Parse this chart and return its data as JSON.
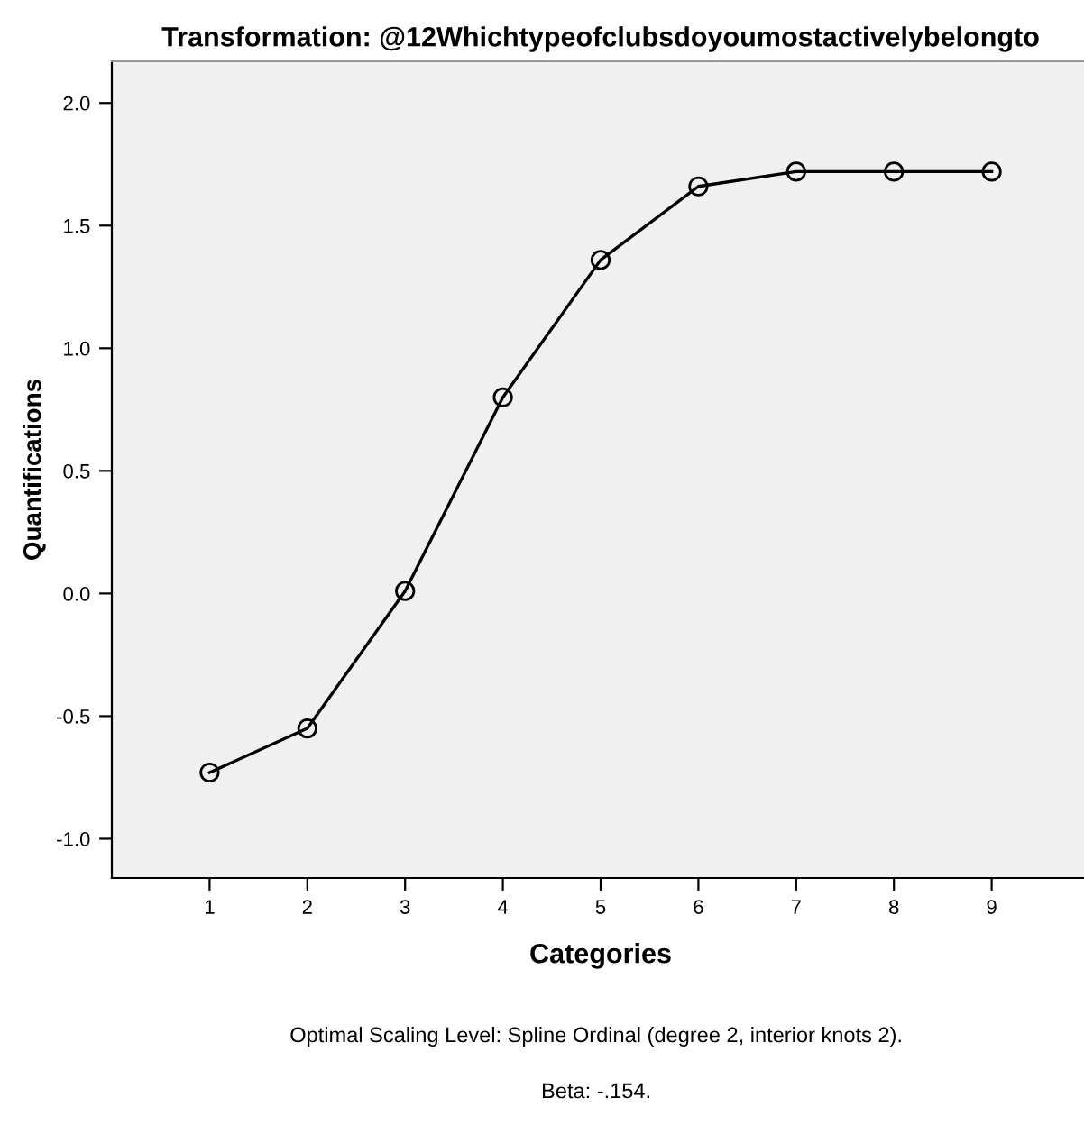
{
  "chart_data": {
    "type": "line",
    "title": "Transformation: @12Whichtypeofclubsdoyoumostactivelybelongto",
    "xlabel": "Categories",
    "ylabel": "Quantifications",
    "annotations": [
      "Optimal Scaling Level: Spline Ordinal (degree 2, interior knots 2).",
      "Beta: -.154."
    ],
    "x": [
      1,
      2,
      3,
      4,
      5,
      6,
      7,
      8,
      9
    ],
    "series": [
      {
        "color": "#000000",
        "values": [
          -0.73,
          -0.55,
          0.01,
          0.8,
          1.36,
          1.66,
          1.72,
          1.72,
          1.72
        ]
      }
    ],
    "xlim": [
      0,
      10
    ],
    "xticks": [
      1,
      2,
      3,
      4,
      5,
      6,
      7,
      8,
      9
    ],
    "ylim": [
      -1.16,
      2.17
    ],
    "yticks": [
      {
        "value": -1.0,
        "label": "-1.0"
      },
      {
        "value": -0.5,
        "label": "-0.5"
      },
      {
        "value": 0.0,
        "label": "0.0"
      },
      {
        "value": 0.5,
        "label": "0.5"
      },
      {
        "value": 1.0,
        "label": "1.0"
      },
      {
        "value": 1.5,
        "label": "1.5"
      },
      {
        "value": 2.0,
        "label": "2.0"
      }
    ],
    "marker": "circle",
    "line_style": "solid",
    "grid": false
  }
}
